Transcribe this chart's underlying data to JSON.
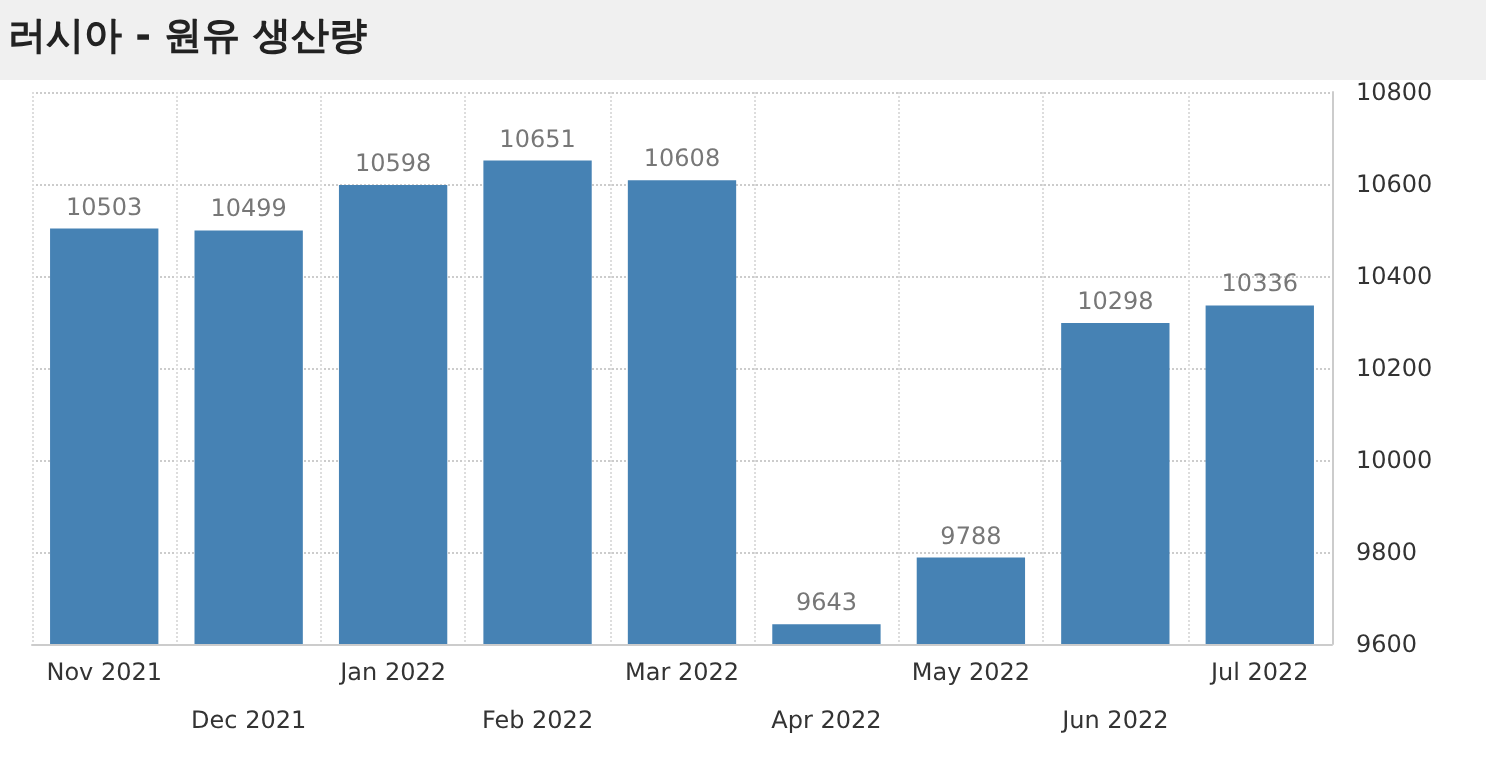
{
  "chart_data": {
    "type": "bar",
    "title": "러시아 - 원유 생산량",
    "categories": [
      "Nov 2021",
      "Dec 2021",
      "Jan 2022",
      "Feb 2022",
      "Mar 2022",
      "Apr 2022",
      "May 2022",
      "Jun 2022",
      "Jul 2022"
    ],
    "values": [
      10503,
      10499,
      10598,
      10651,
      10608,
      9643,
      9788,
      10298,
      10336
    ],
    "color": "#4682b4",
    "ylim": [
      9600,
      10800
    ],
    "yticks": [
      9600,
      9800,
      10000,
      10200,
      10400,
      10600,
      10800
    ],
    "grid": true,
    "data_labels": true
  }
}
